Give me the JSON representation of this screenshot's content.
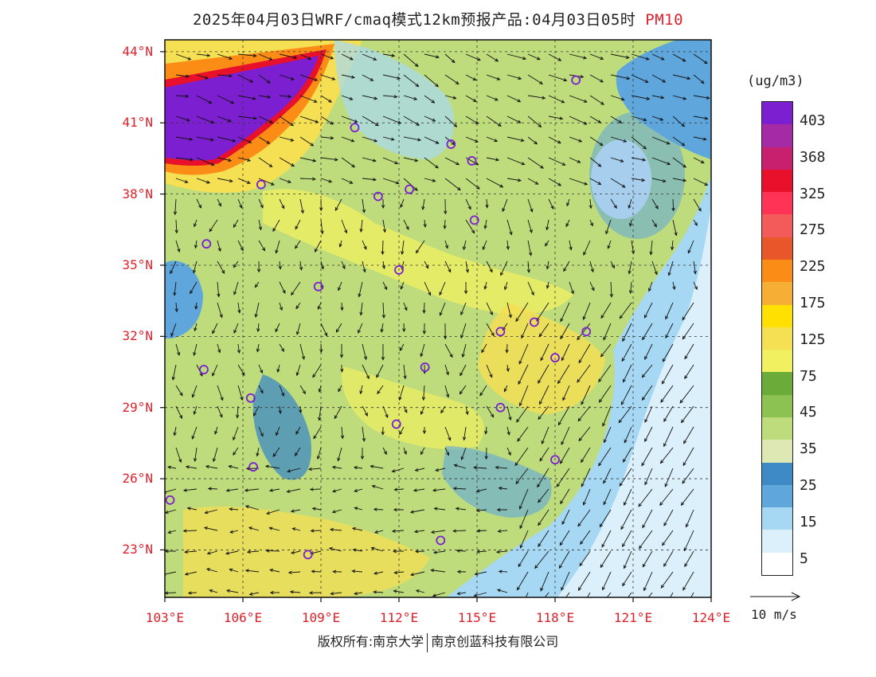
{
  "title": {
    "text": "2025年04月03日WRF/cmaq模式12km预报产品:04月03日05时",
    "pollutant": "PM10"
  },
  "map": {
    "lat_labels": [
      "44°N",
      "41°N",
      "38°N",
      "35°N",
      "32°N",
      "29°N",
      "26°N",
      "23°N"
    ],
    "lon_labels": [
      "103°E",
      "106°E",
      "109°E",
      "112°E",
      "115°E",
      "118°E",
      "121°E",
      "124°E"
    ],
    "lat_range": [
      21.0,
      44.5
    ],
    "lon_range": [
      103.0,
      124.0
    ],
    "stations": [
      {
        "lon": 118.8,
        "lat": 42.8
      },
      {
        "lon": 110.3,
        "lat": 40.8
      },
      {
        "lon": 114.0,
        "lat": 40.1
      },
      {
        "lon": 114.8,
        "lat": 39.4
      },
      {
        "lon": 106.7,
        "lat": 38.4
      },
      {
        "lon": 111.2,
        "lat": 37.9
      },
      {
        "lon": 112.4,
        "lat": 38.2
      },
      {
        "lon": 114.9,
        "lat": 36.9
      },
      {
        "lon": 104.6,
        "lat": 35.9
      },
      {
        "lon": 112.0,
        "lat": 34.8
      },
      {
        "lon": 108.9,
        "lat": 34.1
      },
      {
        "lon": 117.2,
        "lat": 32.6
      },
      {
        "lon": 115.9,
        "lat": 32.2
      },
      {
        "lon": 119.2,
        "lat": 32.2
      },
      {
        "lon": 118.0,
        "lat": 31.1
      },
      {
        "lon": 104.5,
        "lat": 30.6
      },
      {
        "lon": 113.0,
        "lat": 30.7
      },
      {
        "lon": 106.3,
        "lat": 29.4
      },
      {
        "lon": 115.9,
        "lat": 29.0
      },
      {
        "lon": 111.9,
        "lat": 28.3
      },
      {
        "lon": 106.4,
        "lat": 26.5
      },
      {
        "lon": 103.2,
        "lat": 25.1
      },
      {
        "lon": 118.0,
        "lat": 26.8
      },
      {
        "lon": 113.6,
        "lat": 23.4
      },
      {
        "lon": 108.5,
        "lat": 22.8
      }
    ]
  },
  "legend": {
    "unit": "(ug/m3)",
    "labels": [
      "403",
      "368",
      "325",
      "275",
      "225",
      "175",
      "125",
      "75",
      "45",
      "35",
      "25",
      "15",
      "5"
    ],
    "colors": [
      "#7c1fd0",
      "#a52aa5",
      "#c8206e",
      "#e8102a",
      "#ff3355",
      "#f35a5a",
      "#e8562a",
      "#fb8c16",
      "#f7ae35",
      "#ffe000",
      "#f5df53",
      "#f0f060",
      "#6aab3a",
      "#8cc252",
      "#bedc7c",
      "#dde8b4",
      "#3e8ac6",
      "#5fa6dc",
      "#a6d8f4",
      "#dcf0fb",
      "#ffffff"
    ],
    "vector_label": "10 m/s"
  },
  "footer": {
    "rights": "版权所有:南京大学",
    "company": "南京创蓝科技有限公司"
  }
}
